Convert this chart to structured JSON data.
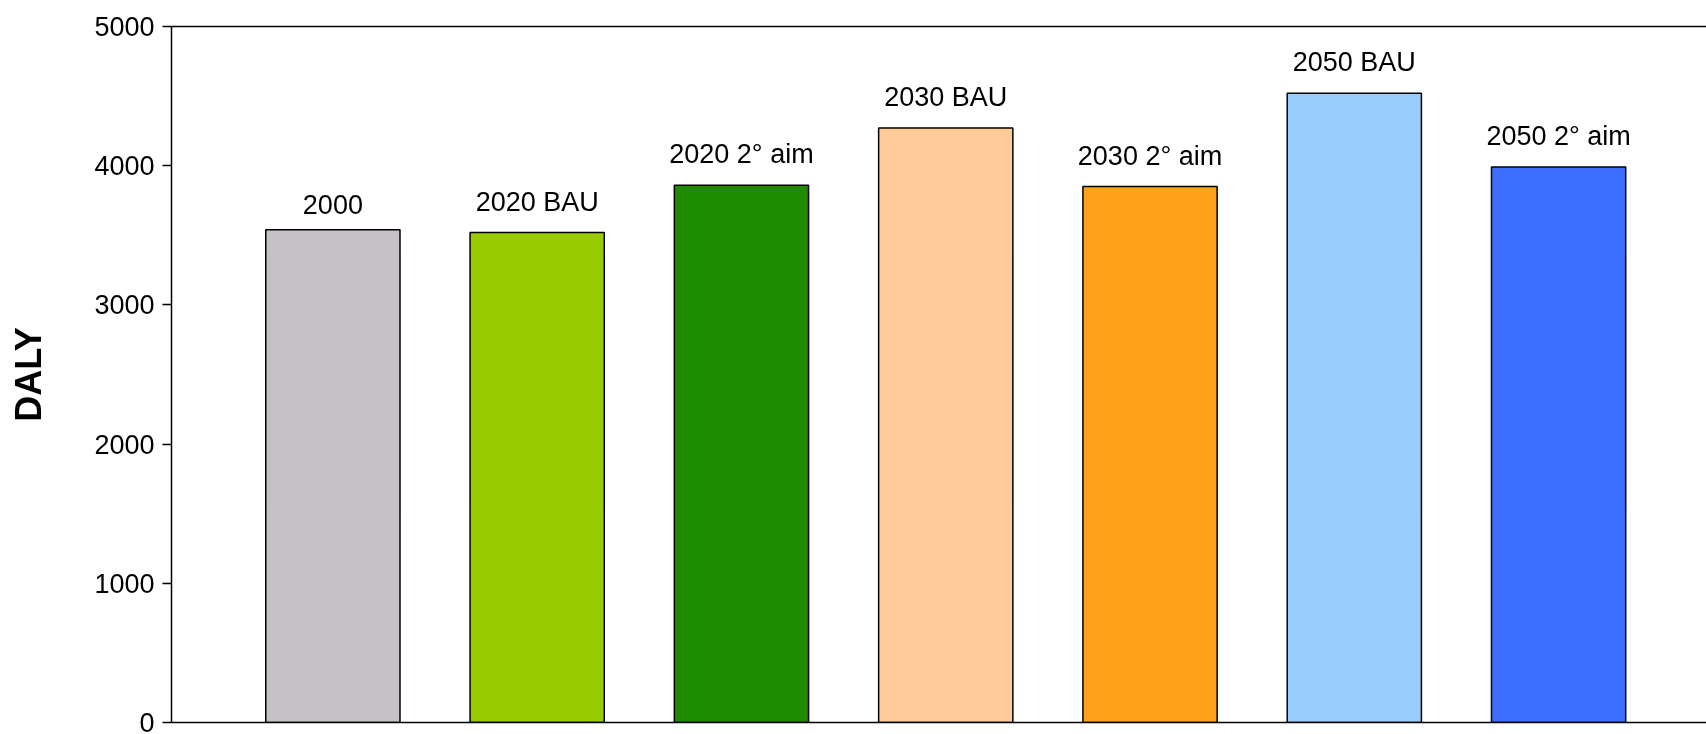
{
  "chart_data": {
    "type": "bar",
    "ylabel": "DALY",
    "categories": [
      "2000",
      "2020 BAU",
      "2020 2° aim",
      "2030 BAU",
      "2030 2° aim",
      "2050 BAU",
      "2050 2° aim"
    ],
    "values": [
      3540,
      3520,
      3860,
      4270,
      3850,
      4520,
      3990
    ],
    "colors": [
      "#c4c2c6",
      "#99cc00",
      "#1f8c00",
      "#ffcc99",
      "#ffa31a",
      "#99ccff",
      "#3d6eff"
    ],
    "ylim": [
      0,
      5000
    ],
    "yticks": [
      0,
      1000,
      2000,
      3000,
      4000,
      5000
    ]
  }
}
